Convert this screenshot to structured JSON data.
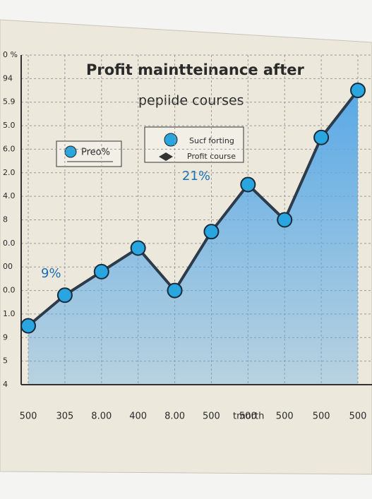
{
  "chart_data": {
    "type": "line",
    "title": [
      "Profit maintteinance after",
      "pepiide courses"
    ],
    "x_label": "tmorth",
    "categories": [
      "500",
      "305",
      "8.00",
      "400",
      "8.00",
      "500",
      "500",
      "500",
      "500",
      "500"
    ],
    "values": [
      2.5,
      3.8,
      4.8,
      5.8,
      4.0,
      6.5,
      8.5,
      7.0,
      10.5,
      12.5
    ],
    "line_color": "#2d3b4a",
    "marker_color": "#29a6e0",
    "fill_color": "#5aa9e6",
    "ylim": [
      0,
      14
    ],
    "yticks": [
      {
        "value": 0,
        "label": "4"
      },
      {
        "value": 1,
        "label": "5"
      },
      {
        "value": 2,
        "label": "9"
      },
      {
        "value": 3,
        "label": "1.0"
      },
      {
        "value": 4,
        "label": "0.0"
      },
      {
        "value": 5,
        "label": "00"
      },
      {
        "value": 6,
        "label": "0.0"
      },
      {
        "value": 7,
        "label": "8"
      },
      {
        "value": 8,
        "label": "4.0"
      },
      {
        "value": 9,
        "label": "2.0"
      },
      {
        "value": 10,
        "label": "6.0"
      },
      {
        "value": 11,
        "label": "5.0"
      },
      {
        "value": 12,
        "label": "5.9"
      },
      {
        "value": 13,
        "label": "94"
      },
      {
        "value": 14,
        "label": "0 %"
      }
    ],
    "grid": true,
    "legend": [
      "Preo%",
      "Sucf forting",
      "Profit course"
    ],
    "annotations": [
      "9%",
      "21%"
    ]
  }
}
